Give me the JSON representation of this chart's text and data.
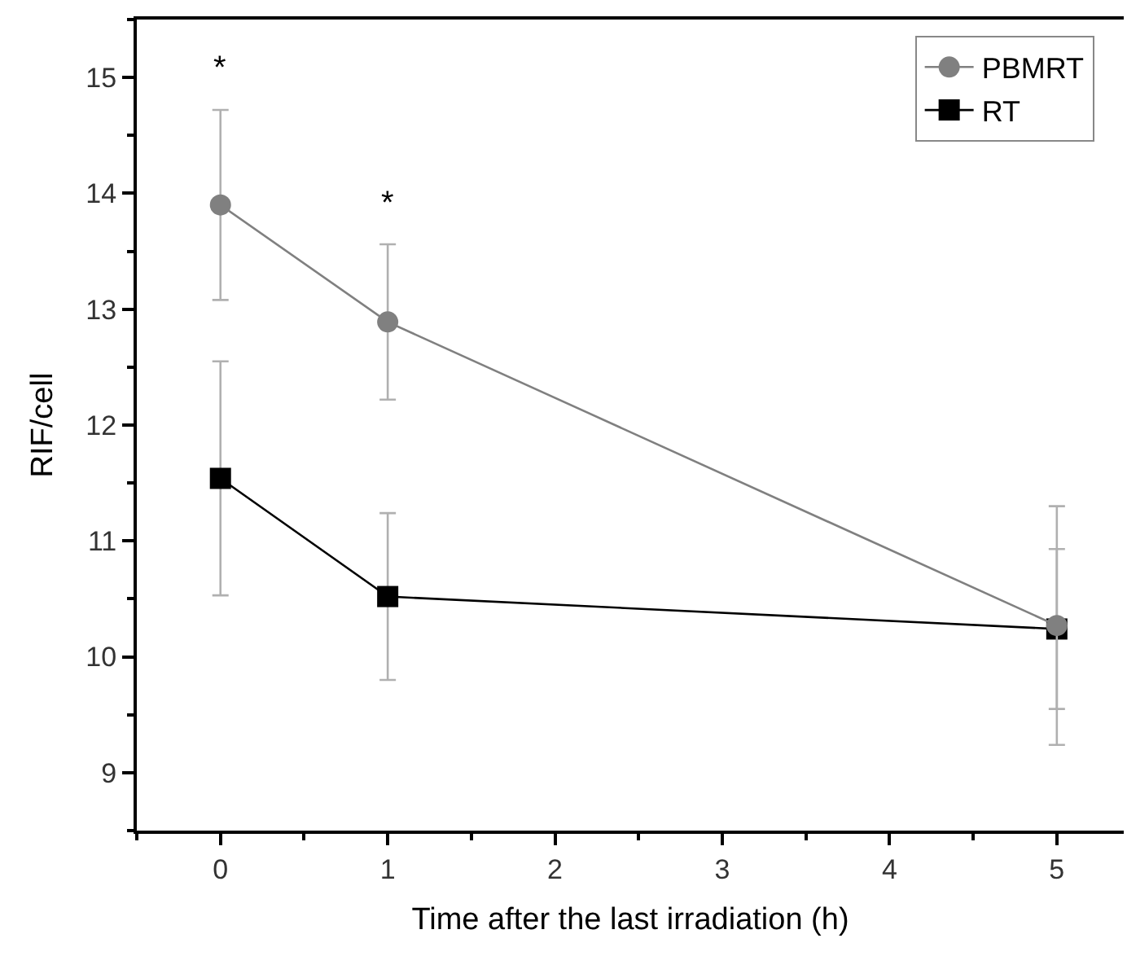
{
  "chart_data": {
    "type": "line",
    "xlabel": "Time after the last irradiation (h)",
    "ylabel": "RIF/cell",
    "x": [
      0,
      1,
      5
    ],
    "series": [
      {
        "name": "PBMRT",
        "color": "#808080",
        "marker": "circle",
        "values": [
          13.9,
          12.89,
          10.27
        ],
        "errors": [
          0.82,
          0.67,
          1.03
        ]
      },
      {
        "name": "RT",
        "color": "#000000",
        "marker": "square",
        "values": [
          11.54,
          10.52,
          10.24
        ],
        "errors": [
          1.01,
          0.72,
          0.69
        ]
      }
    ],
    "annotations": [
      "*",
      "*"
    ],
    "xlim": [
      -0.5,
      5.4
    ],
    "xticks": [
      0,
      1,
      2,
      3,
      4,
      5
    ],
    "ylim": [
      8.5,
      15.5
    ],
    "yticks": [
      9,
      10,
      11,
      12,
      13,
      14,
      15
    ],
    "legend": "top right",
    "line_style": "solid"
  }
}
